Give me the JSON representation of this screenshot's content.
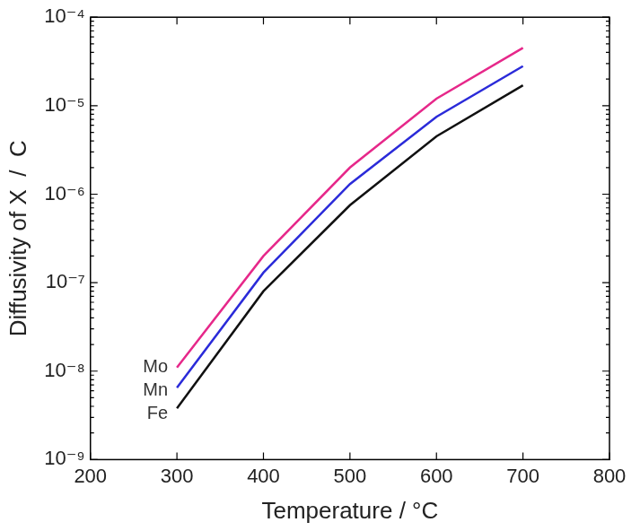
{
  "chart_data": {
    "type": "line",
    "x_label": "Temperature / °C",
    "y_label": "Diffusivity of X  /  C",
    "x": [
      300,
      400,
      500,
      600,
      700
    ],
    "series": [
      {
        "name": "Mo",
        "color": "#e6288a",
        "values": [
          1.1e-08,
          2e-07,
          2e-06,
          1.2e-05,
          4.5e-05
        ]
      },
      {
        "name": "Mn",
        "color": "#2b2bd9",
        "values": [
          6.5e-09,
          1.3e-07,
          1.3e-06,
          7.5e-06,
          2.8e-05
        ]
      },
      {
        "name": "Fe",
        "color": "#111111",
        "values": [
          3.8e-09,
          8e-08,
          7.5e-07,
          4.5e-06,
          1.7e-05
        ]
      }
    ],
    "xlim": [
      200,
      800
    ],
    "xticks": [
      200,
      300,
      400,
      500,
      600,
      700,
      800
    ],
    "ylim": [
      1e-09,
      0.0001
    ],
    "yticks": [
      {
        "value": 1e-09,
        "label": "10⁻⁹"
      },
      {
        "value": 1e-08,
        "label": "10⁻⁸"
      },
      {
        "value": 1e-07,
        "label": "10⁻⁷"
      },
      {
        "value": 1e-06,
        "label": "10⁻⁶"
      },
      {
        "value": 1e-05,
        "label": "10⁻⁵"
      },
      {
        "value": 0.0001,
        "label": "10⁻⁴"
      }
    ],
    "log": "y",
    "grid": false
  }
}
